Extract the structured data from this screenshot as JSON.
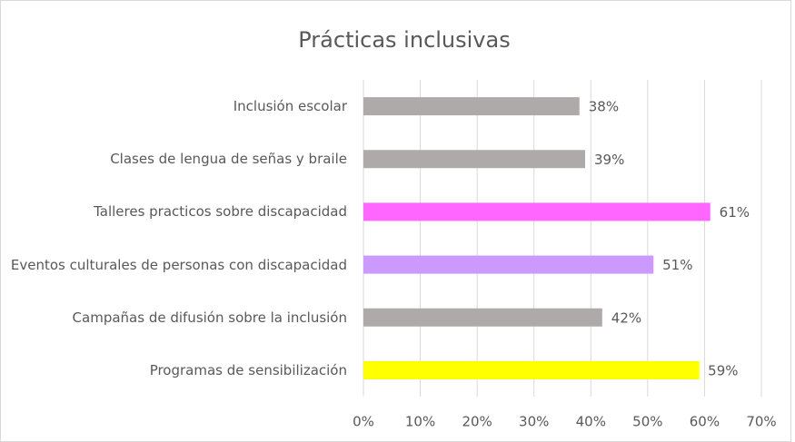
{
  "chart_data": {
    "type": "bar",
    "orientation": "horizontal",
    "title": "Prácticas inclusivas",
    "categories": [
      "Inclusión escolar",
      "Clases de lengua de señas y braile",
      "Talleres practicos sobre discapacidad",
      "Eventos culturales de personas con discapacidad",
      "Campañas de difusión sobre la inclusión",
      "Programas de sensibilización"
    ],
    "values": [
      38,
      39,
      61,
      51,
      42,
      59
    ],
    "value_labels": [
      "38%",
      "39%",
      "61%",
      "51%",
      "42%",
      "59%"
    ],
    "colors": [
      "#aeaaaa",
      "#aeaaaa",
      "#ff66ff",
      "#cc99ff",
      "#aeaaaa",
      "#ffff00"
    ],
    "xlim": [
      0,
      70
    ],
    "xticks": [
      {
        "value": 0,
        "label": "0%"
      },
      {
        "value": 10,
        "label": "10%"
      },
      {
        "value": 20,
        "label": "20%"
      },
      {
        "value": 30,
        "label": "30%"
      },
      {
        "value": 40,
        "label": "40%"
      },
      {
        "value": 50,
        "label": "50%"
      },
      {
        "value": 60,
        "label": "60%"
      },
      {
        "value": 70,
        "label": "70%"
      }
    ],
    "grid": true
  }
}
